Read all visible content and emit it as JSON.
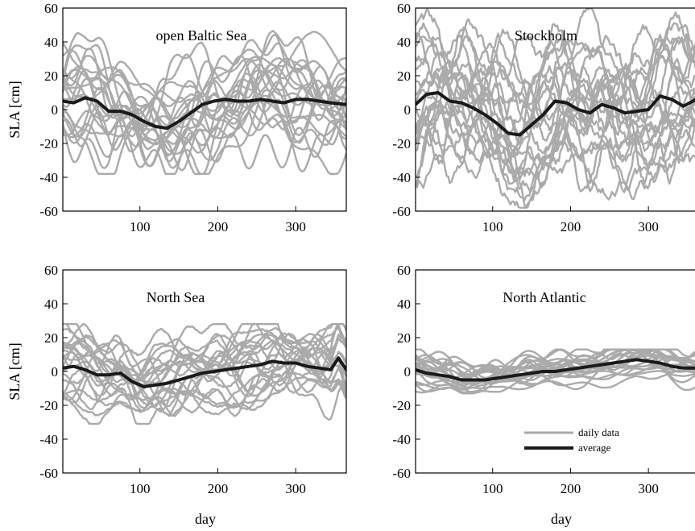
{
  "chart_data": {
    "type": "line",
    "panels": [
      {
        "title": "open Baltic Sea",
        "ylabel": "SLA [cm]",
        "xlabel": "",
        "xlim": [
          1,
          365
        ],
        "ylim": [
          -60,
          60
        ],
        "xticks": [
          100,
          200,
          300
        ],
        "yticks": [
          -60,
          -40,
          -20,
          0,
          20,
          40,
          60
        ],
        "daily_range": {
          "min": -38,
          "max": 48
        },
        "average": {
          "x": [
            1,
            15,
            30,
            45,
            60,
            75,
            90,
            105,
            120,
            135,
            150,
            165,
            180,
            195,
            210,
            225,
            240,
            255,
            270,
            285,
            300,
            315,
            330,
            345,
            365
          ],
          "y": [
            5,
            4,
            7,
            5,
            -1,
            -1,
            -3,
            -7,
            -10,
            -11,
            -7,
            -2,
            3,
            5,
            6,
            5,
            5,
            6,
            5,
            4,
            6,
            6,
            5,
            4,
            3
          ]
        }
      },
      {
        "title": "Stockholm",
        "ylabel": "",
        "xlabel": "",
        "xlim": [
          1,
          365
        ],
        "ylim": [
          -60,
          60
        ],
        "xticks": [
          100,
          200,
          300
        ],
        "yticks": [
          -60,
          -40,
          -20,
          0,
          20,
          40,
          60
        ],
        "daily_range": {
          "min": -58,
          "max": 62
        },
        "average": {
          "x": [
            1,
            15,
            30,
            45,
            60,
            75,
            90,
            105,
            120,
            135,
            150,
            165,
            180,
            195,
            210,
            225,
            240,
            255,
            270,
            285,
            300,
            315,
            330,
            345,
            365
          ],
          "y": [
            3,
            9,
            10,
            5,
            4,
            1,
            -3,
            -8,
            -14,
            -15,
            -9,
            -3,
            5,
            4,
            0,
            -2,
            3,
            1,
            -2,
            -1,
            0,
            8,
            6,
            2,
            7
          ]
        }
      },
      {
        "title": "North Sea",
        "ylabel": "SLA [cm]",
        "xlabel": "day",
        "xlim": [
          1,
          365
        ],
        "ylim": [
          -60,
          60
        ],
        "xticks": [
          100,
          200,
          300
        ],
        "yticks": [
          -60,
          -40,
          -20,
          0,
          20,
          40,
          60
        ],
        "daily_range": {
          "min": -31,
          "max": 28
        },
        "average": {
          "x": [
            1,
            15,
            30,
            45,
            60,
            75,
            90,
            105,
            120,
            135,
            150,
            165,
            180,
            195,
            210,
            225,
            240,
            255,
            270,
            285,
            300,
            315,
            330,
            345,
            355,
            365
          ],
          "y": [
            2,
            3,
            1,
            -2,
            -2,
            -1,
            -6,
            -9,
            -8,
            -7,
            -5,
            -3,
            -1,
            0,
            1,
            2,
            3,
            4,
            6,
            5,
            5,
            3,
            2,
            1,
            8,
            1
          ]
        }
      },
      {
        "title": "North Atlantic",
        "ylabel": "",
        "xlabel": "day",
        "xlim": [
          1,
          365
        ],
        "ylim": [
          -60,
          60
        ],
        "xticks": [
          100,
          200,
          300
        ],
        "yticks": [
          -60,
          -40,
          -20,
          0,
          20,
          40,
          60
        ],
        "daily_range": {
          "min": -13,
          "max": 13
        },
        "average": {
          "x": [
            1,
            15,
            30,
            45,
            60,
            75,
            90,
            105,
            120,
            135,
            150,
            165,
            180,
            195,
            210,
            225,
            240,
            255,
            270,
            285,
            300,
            315,
            330,
            345,
            365
          ],
          "y": [
            1,
            -1,
            -2,
            -3,
            -5,
            -5,
            -5,
            -4,
            -3,
            -2,
            -1,
            0,
            0,
            1,
            2,
            3,
            4,
            5,
            6,
            7,
            6,
            5,
            3,
            2,
            2
          ]
        }
      }
    ],
    "legend": {
      "position": "bottom-right",
      "entries": [
        {
          "label": "daily data",
          "color": "#aaaaaa"
        },
        {
          "label": "average",
          "color": "#1a1a1a"
        }
      ]
    },
    "colors": {
      "daily": "#aaaaaa",
      "average": "#1a1a1a",
      "frame": "#000000"
    }
  }
}
